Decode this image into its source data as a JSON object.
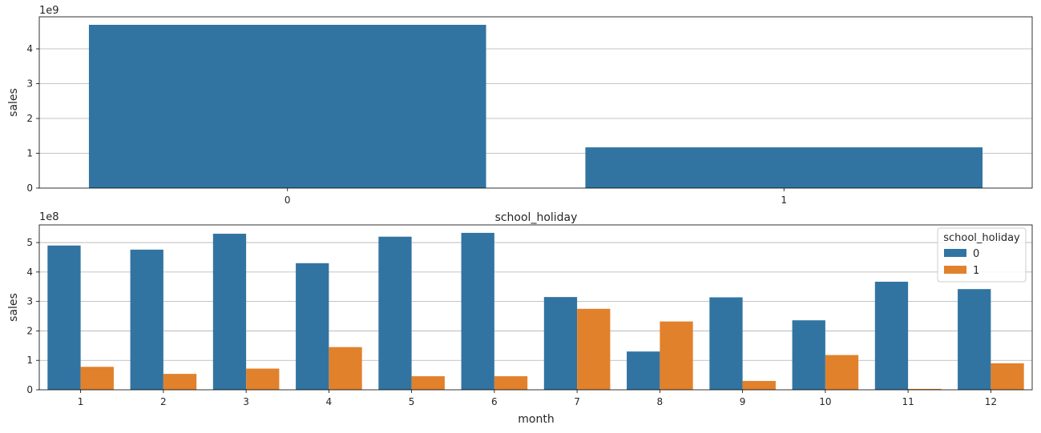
{
  "colors": {
    "series_0": "#3274a1",
    "series_1": "#e1812c",
    "grid": "#b0b0b0",
    "axis": "#000000"
  },
  "chart_data": [
    {
      "type": "bar",
      "categories": [
        "0",
        "1"
      ],
      "values": [
        4690000000.0,
        1170000000.0
      ],
      "xlabel": "school_holiday",
      "ylabel": "sales",
      "offset_label": "1e9",
      "yticks": [
        "0",
        "1",
        "2",
        "3",
        "4"
      ],
      "ylim": [
        0,
        4920000000.0
      ],
      "grid": "y"
    },
    {
      "type": "bar",
      "categories": [
        "1",
        "2",
        "3",
        "4",
        "5",
        "6",
        "7",
        "8",
        "9",
        "10",
        "11",
        "12"
      ],
      "series": [
        {
          "name": "0",
          "values": [
            490000000.0,
            476000000.0,
            530000000.0,
            430000000.0,
            520000000.0,
            533000000.0,
            315000000.0,
            130000000.0,
            314000000.0,
            236000000.0,
            367000000.0,
            342000000.0
          ]
        },
        {
          "name": "1",
          "values": [
            78000000.0,
            54000000.0,
            72000000.0,
            145000000.0,
            46000000.0,
            46000000.0,
            275000000.0,
            232000000.0,
            30000000.0,
            118000000.0,
            3000000.0,
            90000000.0
          ]
        }
      ],
      "xlabel": "month",
      "ylabel": "sales",
      "offset_label": "1e8",
      "yticks": [
        "0",
        "1",
        "2",
        "3",
        "4",
        "5"
      ],
      "ylim": [
        0,
        560000000.0
      ],
      "grid": "y",
      "legend": {
        "title": "school_holiday",
        "placement": "top-right"
      }
    }
  ]
}
